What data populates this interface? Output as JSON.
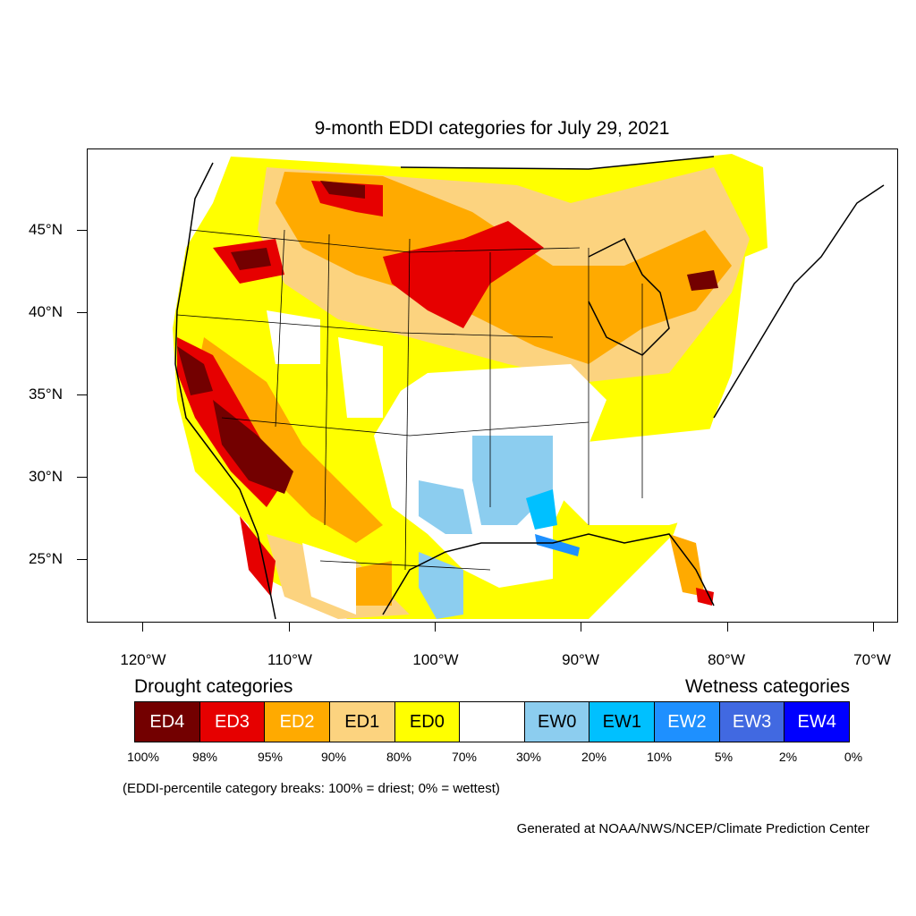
{
  "title": "9-month EDDI categories for July 29, 2021",
  "lat_labels": [
    "45°N",
    "40°N",
    "35°N",
    "30°N",
    "25°N"
  ],
  "lon_labels": [
    "120°W",
    "110°W",
    "100°W",
    "90°W",
    "80°W",
    "70°W"
  ],
  "legend": {
    "drought_heading": "Drought categories",
    "wetness_heading": "Wetness categories",
    "categories": [
      {
        "label": "ED4",
        "color": "#730000",
        "text_color": "#ffffff"
      },
      {
        "label": "ED3",
        "color": "#e60000",
        "text_color": "#ffffff"
      },
      {
        "label": "ED2",
        "color": "#ffaa00",
        "text_color": "#ffffff"
      },
      {
        "label": "ED1",
        "color": "#fcd37f",
        "text_color": "#000000"
      },
      {
        "label": "ED0",
        "color": "#ffff00",
        "text_color": "#000000"
      },
      {
        "label": "",
        "color": "#ffffff",
        "text_color": "#000000"
      },
      {
        "label": "EW0",
        "color": "#8ccdef",
        "text_color": "#000000"
      },
      {
        "label": "EW1",
        "color": "#00c0ff",
        "text_color": "#000000"
      },
      {
        "label": "EW2",
        "color": "#1e90ff",
        "text_color": "#ffffff"
      },
      {
        "label": "EW3",
        "color": "#4169e1",
        "text_color": "#ffffff"
      },
      {
        "label": "EW4",
        "color": "#0000ff",
        "text_color": "#ffffff"
      }
    ],
    "breaks": [
      "100%",
      "98%",
      "95%",
      "90%",
      "80%",
      "70%",
      "30%",
      "20%",
      "10%",
      "5%",
      "2%",
      "0%"
    ]
  },
  "note": "(EDDI-percentile category breaks: 100% = driest; 0% = wettest)",
  "credit": "Generated at NOAA/NWS/NCEP/Climate Prediction Center"
}
